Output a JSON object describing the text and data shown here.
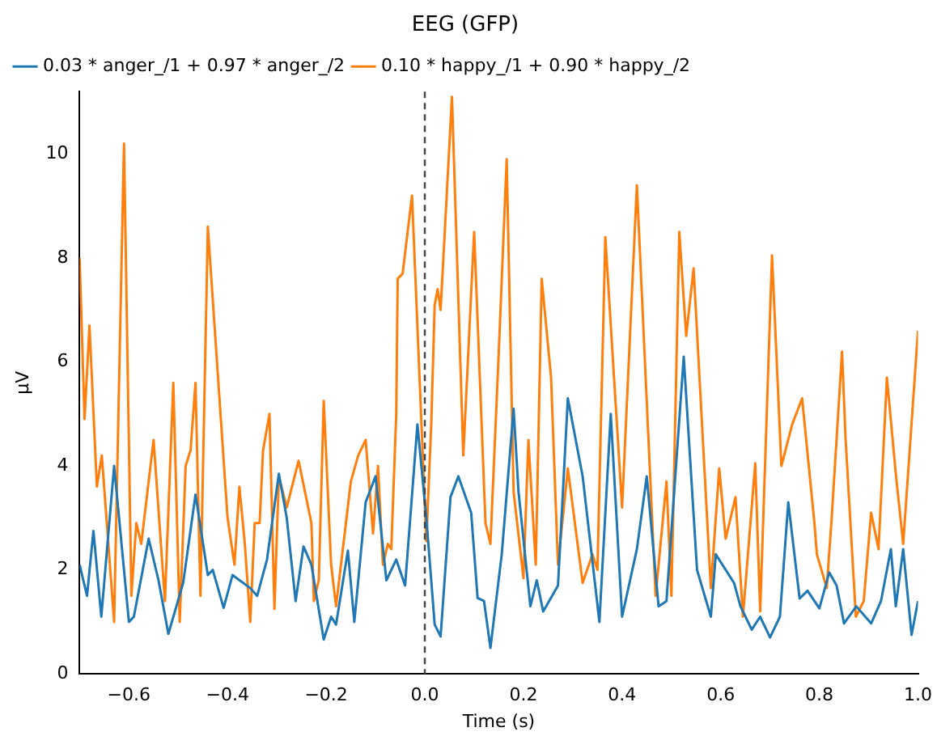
{
  "chart_data": {
    "type": "line",
    "title": "EEG (GFP)",
    "xlabel": "Time (s)",
    "ylabel": "µV",
    "xlim": [
      -0.7,
      1.0
    ],
    "ylim": [
      0,
      11.2
    ],
    "xticks": [
      {
        "value": -0.6,
        "label": "−0.6"
      },
      {
        "value": -0.4,
        "label": "−0.4"
      },
      {
        "value": -0.2,
        "label": "−0.2"
      },
      {
        "value": 0,
        "label": "0.0"
      },
      {
        "value": 0.2,
        "label": "0.2"
      },
      {
        "value": 0.4,
        "label": "0.4"
      },
      {
        "value": 0.6,
        "label": "0.6"
      },
      {
        "value": 0.8,
        "label": "0.8"
      },
      {
        "value": 1.0,
        "label": "1.0"
      }
    ],
    "yticks": [
      0,
      2,
      4,
      6,
      8,
      10
    ],
    "grid": false,
    "legend": "top left",
    "marker": "none",
    "line_style": "solid",
    "ref_lines": [
      {
        "axis": "x",
        "value": 0,
        "color": "#444444",
        "line_style": "dashed"
      }
    ],
    "series": [
      {
        "name": "0.03 * anger_/1 + 0.97 * anger_/2",
        "color": "#1f77b4",
        "x": [
          -0.7,
          -0.685,
          -0.672,
          -0.656,
          -0.63,
          -0.6,
          -0.59,
          -0.56,
          -0.54,
          -0.52,
          -0.49,
          -0.465,
          -0.44,
          -0.43,
          -0.408,
          -0.39,
          -0.354,
          -0.34,
          -0.32,
          -0.296,
          -0.28,
          -0.262,
          -0.246,
          -0.23,
          -0.205,
          -0.19,
          -0.18,
          -0.156,
          -0.143,
          -0.12,
          -0.1,
          -0.078,
          -0.058,
          -0.04,
          -0.015,
          0.003,
          0.02,
          0.032,
          0.052,
          0.068,
          0.094,
          0.107,
          0.12,
          0.133,
          0.156,
          0.18,
          0.19,
          0.214,
          0.227,
          0.24,
          0.27,
          0.29,
          0.32,
          0.354,
          0.377,
          0.4,
          0.43,
          0.45,
          0.474,
          0.49,
          0.525,
          0.552,
          0.58,
          0.59,
          0.627,
          0.64,
          0.663,
          0.68,
          0.7,
          0.72,
          0.737,
          0.76,
          0.776,
          0.8,
          0.82,
          0.835,
          0.85,
          0.875,
          0.905,
          0.925,
          0.945,
          0.955,
          0.97,
          0.987,
          1.0
        ],
        "values": [
          2.1,
          1.5,
          2.75,
          1.1,
          4.0,
          1.0,
          1.1,
          2.6,
          1.8,
          0.77,
          1.75,
          3.45,
          1.9,
          2.0,
          1.27,
          1.9,
          1.65,
          1.5,
          2.2,
          3.85,
          3.0,
          1.4,
          2.45,
          2.1,
          0.66,
          1.1,
          0.95,
          2.37,
          1.0,
          3.3,
          3.8,
          1.8,
          2.2,
          1.7,
          4.8,
          3.0,
          0.95,
          0.72,
          3.4,
          3.8,
          3.1,
          1.46,
          1.4,
          0.5,
          2.3,
          5.1,
          3.5,
          1.3,
          1.8,
          1.2,
          1.7,
          5.3,
          3.8,
          1.0,
          5.0,
          1.1,
          2.4,
          3.8,
          1.3,
          1.4,
          6.1,
          2.0,
          1.1,
          2.3,
          1.75,
          1.3,
          0.85,
          1.1,
          0.7,
          1.1,
          3.3,
          1.45,
          1.6,
          1.26,
          1.95,
          1.7,
          0.97,
          1.3,
          0.97,
          1.4,
          2.4,
          1.3,
          2.4,
          0.75,
          1.4
        ]
      },
      {
        "name": "0.10 * happy_/1 + 0.90 * happy_/2",
        "color": "#ff7f0e",
        "x": [
          -0.7,
          -0.69,
          -0.68,
          -0.665,
          -0.655,
          -0.63,
          -0.61,
          -0.595,
          -0.585,
          -0.575,
          -0.55,
          -0.527,
          -0.51,
          -0.497,
          -0.485,
          -0.475,
          -0.465,
          -0.455,
          -0.44,
          -0.4,
          -0.386,
          -0.376,
          -0.365,
          -0.354,
          -0.345,
          -0.335,
          -0.328,
          -0.315,
          -0.305,
          -0.296,
          -0.28,
          -0.256,
          -0.23,
          -0.225,
          -0.215,
          -0.205,
          -0.19,
          -0.18,
          -0.16,
          -0.15,
          -0.135,
          -0.12,
          -0.105,
          -0.095,
          -0.085,
          -0.075,
          -0.068,
          -0.058,
          -0.055,
          -0.045,
          -0.026,
          0.003,
          0.013,
          0.02,
          0.026,
          0.032,
          0.055,
          0.078,
          0.1,
          0.123,
          0.133,
          0.15,
          0.166,
          0.18,
          0.2,
          0.21,
          0.225,
          0.237,
          0.256,
          0.27,
          0.29,
          0.32,
          0.34,
          0.35,
          0.366,
          0.4,
          0.43,
          0.468,
          0.49,
          0.5,
          0.516,
          0.53,
          0.545,
          0.58,
          0.597,
          0.61,
          0.63,
          0.645,
          0.67,
          0.68,
          0.704,
          0.723,
          0.745,
          0.765,
          0.79,
          0.795,
          0.815,
          0.825,
          0.846,
          0.853,
          0.874,
          0.89,
          0.905,
          0.92,
          0.937,
          0.955,
          0.97,
          1.0
        ],
        "values": [
          8.0,
          4.9,
          6.7,
          3.6,
          4.2,
          1.0,
          10.2,
          1.5,
          2.9,
          2.5,
          4.5,
          1.4,
          5.6,
          1.0,
          4.0,
          4.3,
          5.6,
          1.5,
          8.6,
          3.0,
          2.1,
          3.6,
          2.5,
          1.0,
          2.9,
          2.9,
          4.3,
          5.0,
          1.25,
          3.8,
          3.2,
          4.1,
          2.9,
          1.4,
          1.8,
          5.25,
          2.1,
          1.3,
          2.9,
          3.7,
          4.2,
          4.5,
          2.7,
          4.0,
          2.1,
          2.5,
          2.4,
          5.0,
          7.6,
          7.7,
          9.2,
          2.55,
          4.8,
          7.1,
          7.4,
          7.0,
          11.1,
          4.2,
          8.5,
          2.9,
          2.5,
          6.2,
          9.9,
          3.5,
          1.84,
          4.5,
          2.1,
          7.6,
          5.7,
          2.1,
          3.95,
          1.75,
          2.3,
          2.0,
          8.4,
          3.2,
          9.4,
          1.5,
          3.7,
          1.5,
          8.5,
          6.5,
          7.8,
          1.65,
          3.95,
          2.6,
          3.4,
          1.1,
          4.05,
          1.2,
          8.05,
          4.0,
          4.8,
          5.3,
          2.9,
          2.3,
          1.65,
          3.0,
          6.2,
          4.55,
          1.1,
          1.4,
          3.1,
          2.4,
          5.7,
          3.85,
          2.5,
          6.6
        ]
      }
    ]
  }
}
